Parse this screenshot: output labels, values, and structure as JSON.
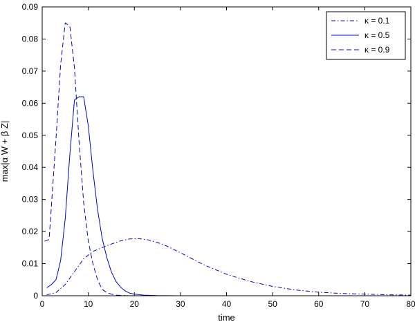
{
  "chart_data": {
    "type": "line",
    "xlabel": "time",
    "ylabel": "max|α W + β Z|",
    "xlim": [
      0,
      80
    ],
    "ylim": [
      0,
      0.09
    ],
    "xticks": [
      0,
      10,
      20,
      30,
      40,
      50,
      60,
      70,
      80
    ],
    "yticks": [
      0,
      0.01,
      0.02,
      0.03,
      0.04,
      0.05,
      0.06,
      0.07,
      0.08,
      0.09
    ],
    "xtick_labels": [
      "0",
      "10",
      "20",
      "30",
      "40",
      "50",
      "60",
      "70",
      "80"
    ],
    "ytick_labels": [
      "0",
      "0.01",
      "0.02",
      "0.03",
      "0.04",
      "0.05",
      "0.06",
      "0.07",
      "0.08",
      "0.09"
    ],
    "grid": false,
    "legend_position": "top-right",
    "series": [
      {
        "name": "κ = 0.1",
        "style": "dashdot",
        "color": "#0000cc",
        "x": [
          1,
          3,
          5,
          7,
          9,
          11,
          13,
          15,
          17,
          19,
          21,
          23,
          25,
          27,
          30,
          35,
          40,
          45,
          50,
          55,
          60,
          65,
          70,
          75,
          80
        ],
        "y": [
          0.0003,
          0.001,
          0.0035,
          0.0075,
          0.0115,
          0.0138,
          0.015,
          0.0161,
          0.0171,
          0.0177,
          0.0178,
          0.0174,
          0.0166,
          0.0155,
          0.0134,
          0.0097,
          0.0067,
          0.0045,
          0.0029,
          0.0018,
          0.0011,
          0.0007,
          0.0005,
          0.0003,
          0.0002
        ]
      },
      {
        "name": "κ = 0.5",
        "style": "solid",
        "color": "#0000cc",
        "x": [
          1,
          2,
          3,
          4,
          5,
          6,
          7,
          8,
          9,
          10,
          11,
          12,
          13,
          14,
          15,
          16,
          17,
          18,
          19,
          20,
          22,
          25,
          30,
          40
        ],
        "y": [
          0.0025,
          0.0035,
          0.005,
          0.011,
          0.024,
          0.044,
          0.061,
          0.062,
          0.062,
          0.053,
          0.039,
          0.027,
          0.018,
          0.012,
          0.0075,
          0.0045,
          0.0027,
          0.0015,
          0.0008,
          0.0005,
          0.0002,
          5e-05,
          0.0,
          0.0
        ]
      },
      {
        "name": "κ = 0.9",
        "style": "dashed",
        "color": "#0000cc",
        "x": [
          0.5,
          1.5,
          2,
          3,
          4,
          5,
          6,
          7,
          8,
          9,
          10,
          11,
          12,
          13,
          14,
          15,
          16,
          18,
          20,
          25,
          30,
          40,
          50
        ],
        "y": [
          0.017,
          0.0175,
          0.028,
          0.049,
          0.072,
          0.085,
          0.084,
          0.071,
          0.048,
          0.029,
          0.017,
          0.01,
          0.005,
          0.002,
          0.001,
          0.0005,
          0.0002,
          5e-05,
          0.0,
          0.0,
          0.0,
          0.0,
          0.0
        ]
      }
    ]
  }
}
